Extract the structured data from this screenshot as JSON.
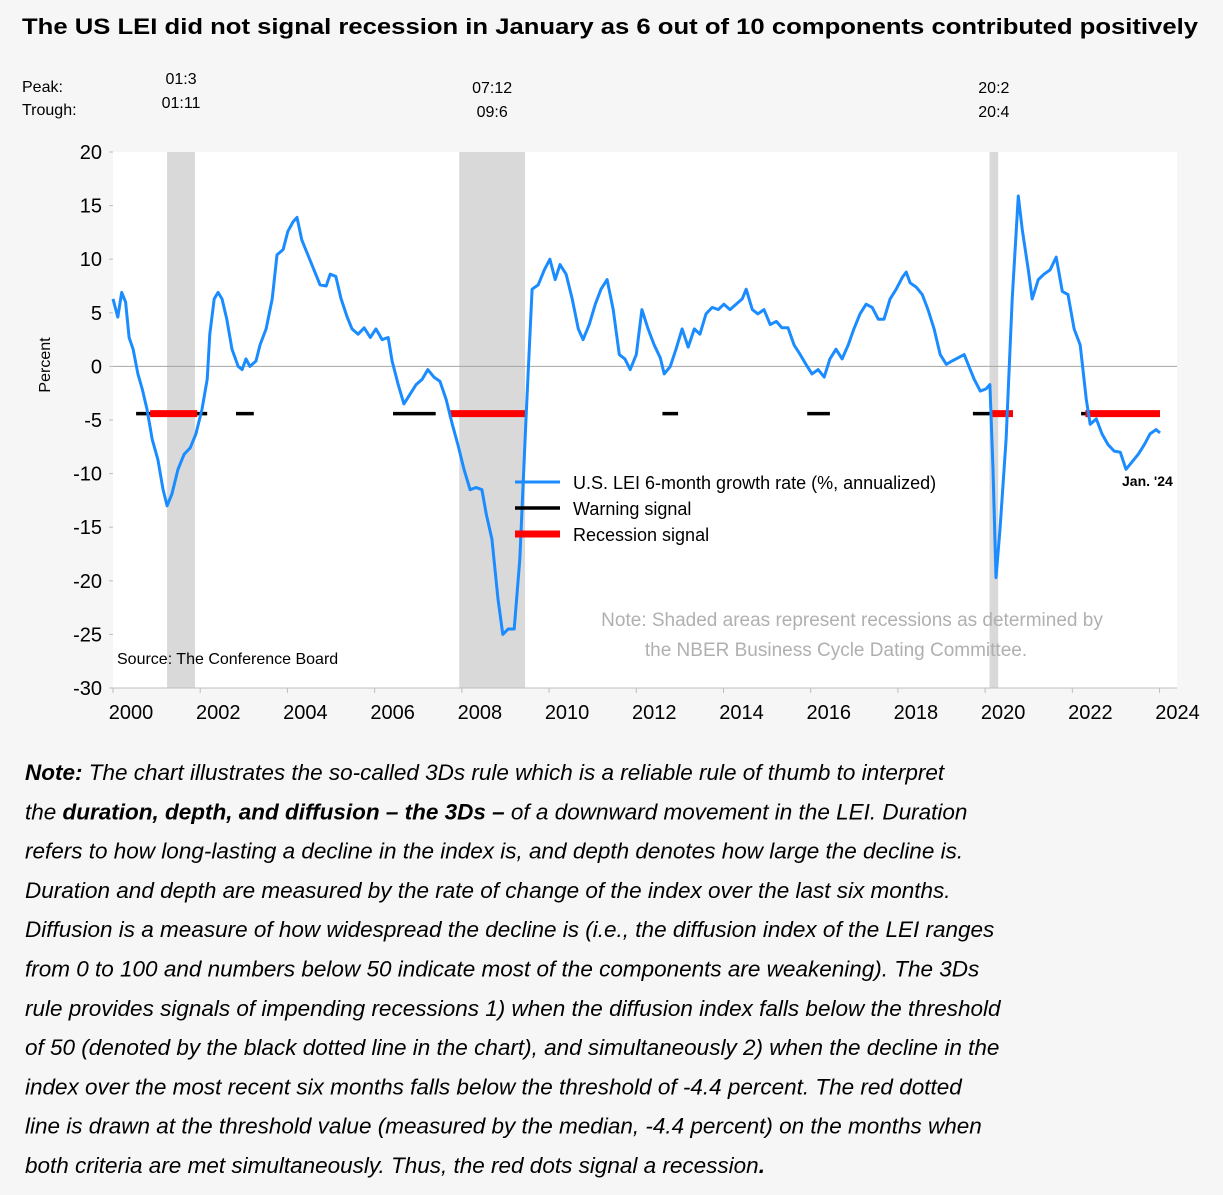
{
  "chart_data": {
    "type": "line",
    "title": "The US LEI did not signal recession in January as 6 out of 10 components contributed positively",
    "y_label": "Percent",
    "peak_label": "Peak:",
    "trough_label": "Trough:",
    "recessions": [
      {
        "peak": "01:3",
        "trough": "01:11",
        "start": 2001.24,
        "end": 2001.88
      },
      {
        "peak": "07:12",
        "trough": "09:6",
        "start": 2007.94,
        "end": 2009.45
      },
      {
        "peak": "20:2",
        "trough": "20:4",
        "start": 2020.1,
        "end": 2020.3
      }
    ],
    "xlim": [
      2000,
      2024.4
    ],
    "xticks": [
      2000,
      2002,
      2004,
      2006,
      2008,
      2010,
      2012,
      2014,
      2016,
      2018,
      2020,
      2022,
      2024
    ],
    "ylim": [
      -30,
      20
    ],
    "yticks": [
      20,
      15,
      10,
      5,
      0,
      -5,
      -10,
      -15,
      -20,
      -25,
      -30
    ],
    "series": [
      {
        "name": "U.S. LEI 6-month growth rate (%, annualized)",
        "color": "#1a8cff",
        "x": [
          2000.0,
          2000.11,
          2000.2,
          2000.29,
          2000.37,
          2000.46,
          2000.57,
          2000.67,
          2000.78,
          2000.9,
          2001.03,
          2001.15,
          2001.24,
          2001.35,
          2001.49,
          2001.63,
          2001.77,
          2001.9,
          2002.04,
          2002.16,
          2002.22,
          2002.32,
          2002.41,
          2002.5,
          2002.61,
          2002.73,
          2002.87,
          2002.96,
          2003.05,
          2003.14,
          2003.28,
          2003.37,
          2003.51,
          2003.65,
          2003.76,
          2003.9,
          2004.01,
          2004.13,
          2004.22,
          2004.33,
          2004.47,
          2004.61,
          2004.75,
          2004.89,
          2004.98,
          2005.11,
          2005.23,
          2005.37,
          2005.48,
          2005.62,
          2005.76,
          2005.9,
          2006.03,
          2006.17,
          2006.31,
          2006.4,
          2006.54,
          2006.67,
          2006.81,
          2006.95,
          2007.09,
          2007.22,
          2007.36,
          2007.5,
          2007.64,
          2007.78,
          2007.91,
          2008.05,
          2008.19,
          2008.33,
          2008.46,
          2008.56,
          2008.69,
          2008.83,
          2008.94,
          2009.06,
          2009.2,
          2009.33,
          2009.47,
          2009.61,
          2009.75,
          2009.89,
          2010.02,
          2010.14,
          2010.25,
          2010.39,
          2010.53,
          2010.67,
          2010.78,
          2010.92,
          2011.06,
          2011.19,
          2011.33,
          2011.47,
          2011.61,
          2011.74,
          2011.86,
          2012.0,
          2012.13,
          2012.27,
          2012.41,
          2012.55,
          2012.64,
          2012.78,
          2012.91,
          2013.05,
          2013.19,
          2013.33,
          2013.46,
          2013.6,
          2013.74,
          2013.88,
          2014.01,
          2014.15,
          2014.29,
          2014.43,
          2014.52,
          2014.66,
          2014.79,
          2014.93,
          2015.07,
          2015.21,
          2015.34,
          2015.48,
          2015.62,
          2015.76,
          2015.89,
          2016.03,
          2016.17,
          2016.31,
          2016.44,
          2016.58,
          2016.72,
          2016.86,
          2016.99,
          2017.13,
          2017.27,
          2017.41,
          2017.55,
          2017.68,
          2017.82,
          2017.96,
          2018.1,
          2018.19,
          2018.28,
          2018.42,
          2018.56,
          2018.69,
          2018.83,
          2018.97,
          2019.11,
          2019.24,
          2019.38,
          2019.52,
          2019.61,
          2019.75,
          2019.89,
          2020.02,
          2020.11,
          2020.18,
          2020.25,
          2020.34,
          2020.48,
          2020.62,
          2020.76,
          2020.85,
          2020.99,
          2021.08,
          2021.22,
          2021.35,
          2021.49,
          2021.63,
          2021.77,
          2021.9,
          2022.04,
          2022.18,
          2022.32,
          2022.41,
          2022.55,
          2022.68,
          2022.82,
          2022.96,
          2023.1,
          2023.23,
          2023.37,
          2023.51,
          2023.65,
          2023.78,
          2023.92,
          2024.01
        ],
        "values": [
          6.3,
          4.6,
          6.9,
          6.0,
          2.7,
          1.6,
          -0.7,
          -2.1,
          -4.0,
          -6.8,
          -8.7,
          -11.5,
          -13.0,
          -11.9,
          -9.6,
          -8.2,
          -7.6,
          -6.3,
          -4.0,
          -1.2,
          3.0,
          6.3,
          6.9,
          6.3,
          4.4,
          1.6,
          0.0,
          -0.3,
          0.7,
          0.0,
          0.5,
          2.0,
          3.5,
          6.3,
          10.4,
          10.9,
          12.6,
          13.5,
          13.9,
          11.8,
          10.4,
          9.0,
          7.6,
          7.5,
          8.6,
          8.4,
          6.3,
          4.6,
          3.5,
          3.0,
          3.6,
          2.7,
          3.5,
          2.5,
          2.7,
          0.5,
          -1.7,
          -3.5,
          -2.6,
          -1.7,
          -1.2,
          -0.3,
          -1.0,
          -1.4,
          -3.1,
          -5.4,
          -7.3,
          -9.6,
          -11.5,
          -11.3,
          -11.5,
          -13.8,
          -16.1,
          -21.7,
          -25.0,
          -24.5,
          -24.5,
          -18.0,
          -4.9,
          7.2,
          7.6,
          9.0,
          10.0,
          8.1,
          9.5,
          8.6,
          6.3,
          3.5,
          2.5,
          3.9,
          5.8,
          7.2,
          8.1,
          5.3,
          1.1,
          0.7,
          -0.3,
          1.1,
          5.3,
          3.5,
          2.0,
          0.8,
          -0.7,
          0.0,
          1.6,
          3.5,
          1.8,
          3.5,
          3.0,
          4.9,
          5.5,
          5.3,
          5.8,
          5.3,
          5.8,
          6.3,
          7.2,
          5.3,
          4.9,
          5.3,
          3.9,
          4.2,
          3.6,
          3.6,
          2.0,
          1.1,
          0.2,
          -0.7,
          -0.3,
          -1.0,
          0.7,
          1.6,
          0.7,
          2.0,
          3.5,
          4.9,
          5.8,
          5.5,
          4.4,
          4.4,
          6.3,
          7.2,
          8.3,
          8.8,
          7.8,
          7.4,
          6.7,
          5.3,
          3.5,
          1.1,
          0.2,
          0.5,
          0.8,
          1.1,
          0.2,
          -1.2,
          -2.3,
          -2.1,
          -1.7,
          -9.6,
          -19.7,
          -15.2,
          -6.8,
          6.3,
          15.9,
          12.8,
          9.0,
          6.3,
          8.1,
          8.6,
          9.0,
          10.2,
          7.0,
          6.7,
          3.5,
          2.0,
          -3.1,
          -5.4,
          -4.9,
          -6.3,
          -7.3,
          -7.9,
          -8.0,
          -9.6,
          -8.9,
          -8.2,
          -7.3,
          -6.3,
          -5.9,
          -6.2
        ],
        "width": 3
      },
      {
        "name": "Warning signal",
        "color": "#000000",
        "width": 3.5,
        "x": [
          2000.53,
          2002.16,
          null,
          2002.82,
          2003.23,
          null,
          2006.42,
          2007.4,
          null,
          2012.6,
          2012.96,
          null,
          2015.92,
          2016.44,
          null,
          2019.72,
          2020.1,
          null,
          2022.2,
          2022.35
        ],
        "values": [
          -4.4,
          -4.4,
          null,
          -4.4,
          -4.4,
          null,
          -4.4,
          -4.4,
          null,
          -4.4,
          -4.4,
          null,
          -4.4,
          -4.4,
          null,
          -4.4,
          -4.4,
          null,
          -4.4,
          -4.4
        ]
      },
      {
        "name": "Recession signal",
        "color": "#ff0000",
        "width": 7,
        "x": [
          2000.85,
          2001.93,
          null,
          2007.7,
          2009.5,
          null,
          2020.1,
          2020.64,
          null,
          2022.3,
          2024.01
        ],
        "values": [
          -4.4,
          -4.4,
          null,
          -4.4,
          -4.4,
          null,
          -4.4,
          -4.4,
          null,
          -4.4,
          -4.4
        ]
      }
    ],
    "end_label": "Jan. '24",
    "shading_note": [
      "Note: Shaded areas represent recessions as determined by",
      "the NBER Business Cycle Dating Committee."
    ],
    "source": "Source: The Conference Board"
  },
  "note": {
    "lines": [
      [
        {
          "text": "Note:",
          "bold": true
        },
        " The chart illustrates the so-called 3Ds rule which is a reliable rule of thumb to interpret"
      ],
      [
        "the ",
        {
          "text": "duration, depth, and diffusion – the 3Ds –",
          "bold": true
        },
        " of a downward movement in the LEI. Duration"
      ],
      [
        "refers to how long-lasting a decline in the index is, and depth denotes how large the decline is."
      ],
      [
        "Duration and depth are measured by the rate of change of the index over the last six months."
      ],
      [
        "Diffusion is a measure of how widespread the decline is (i.e., the diffusion index of the LEI ranges"
      ],
      [
        "from 0 to 100 and numbers below 50 indicate most of the components are weakening). The 3Ds"
      ],
      [
        "rule provides signals of impending recessions 1) when the diffusion index falls below the threshold"
      ],
      [
        "of 50 (denoted by the black dotted line in the chart), and simultaneously 2) when the decline in the"
      ],
      [
        "index over the most recent six months falls below the threshold of -4.4 percent. The red dotted"
      ],
      [
        "line is drawn at the threshold value (measured by the median, -4.4 percent) on the months when"
      ],
      [
        "both criteria are met simultaneously. Thus, the red dots signal a recession",
        {
          "text": ".",
          "bold": true
        }
      ]
    ]
  }
}
